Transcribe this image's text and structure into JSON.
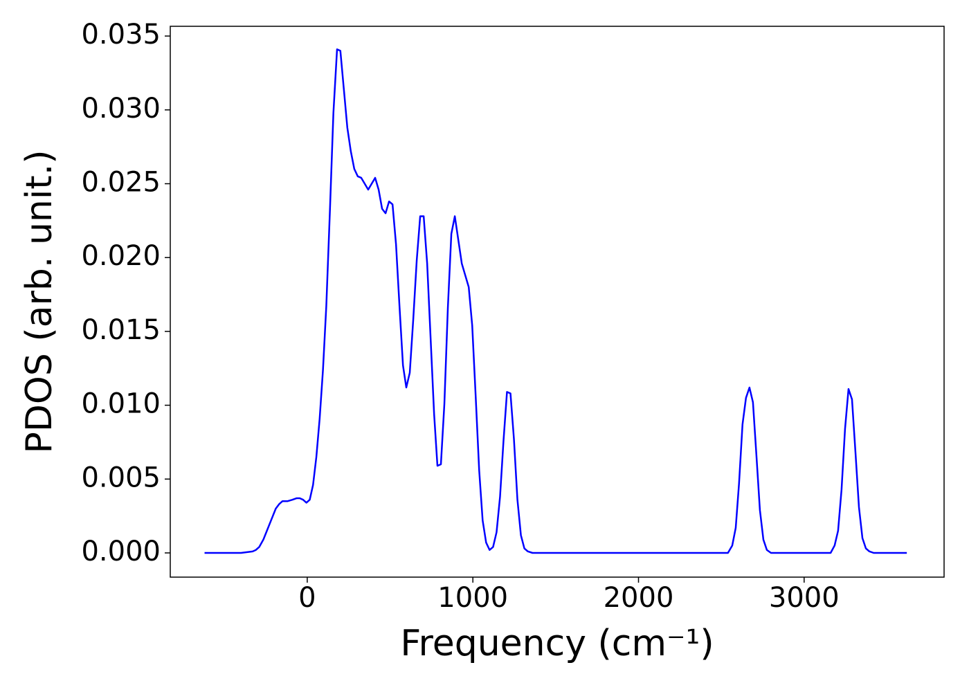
{
  "chart_data": {
    "type": "line",
    "x_label": "Frequency (cm⁻¹)",
    "y_label": "PDOS (arb. unit.)",
    "x": [
      -620,
      -400,
      -330,
      -310,
      -290,
      -265,
      -240,
      -215,
      -190,
      -170,
      -150,
      -120,
      -90,
      -65,
      -45,
      -25,
      -5,
      15,
      35,
      55,
      75,
      95,
      115,
      137,
      158,
      180,
      200,
      221,
      242,
      263,
      284,
      305,
      326,
      347,
      368,
      389,
      410,
      431,
      452,
      473,
      494,
      515,
      536,
      557,
      578,
      598,
      619,
      640,
      661,
      682,
      703,
      724,
      745,
      766,
      786,
      807,
      828,
      849,
      870,
      891,
      912,
      933,
      954,
      975,
      996,
      1017,
      1038,
      1059,
      1080,
      1101,
      1122,
      1143,
      1164,
      1185,
      1206,
      1227,
      1248,
      1269,
      1290,
      1311,
      1332,
      1360,
      2540,
      2566,
      2587,
      2607,
      2628,
      2649,
      2670,
      2691,
      2712,
      2733,
      2754,
      2775,
      2800,
      3160,
      3184,
      3205,
      3226,
      3247,
      3268,
      3289,
      3310,
      3331,
      3352,
      3373,
      3394,
      3420,
      3620
    ],
    "series": [
      {
        "color": "#0000ff",
        "values": [
          0,
          0,
          0.0001,
          0.0002,
          0.0004,
          0.0009,
          0.0016,
          0.0023,
          0.003,
          0.0033,
          0.0035,
          0.0035,
          0.0036,
          0.0037,
          0.0037,
          0.0036,
          0.0034,
          0.0036,
          0.0046,
          0.0065,
          0.0091,
          0.0124,
          0.0167,
          0.0232,
          0.0298,
          0.0341,
          0.034,
          0.0314,
          0.0288,
          0.0272,
          0.026,
          0.0255,
          0.0254,
          0.025,
          0.0246,
          0.025,
          0.0254,
          0.0246,
          0.0233,
          0.023,
          0.0238,
          0.0236,
          0.0209,
          0.0167,
          0.0127,
          0.0112,
          0.0122,
          0.0158,
          0.0198,
          0.0228,
          0.0228,
          0.0196,
          0.0145,
          0.0094,
          0.0059,
          0.006,
          0.0101,
          0.0166,
          0.0216,
          0.0228,
          0.0212,
          0.0196,
          0.0188,
          0.018,
          0.0154,
          0.0106,
          0.0056,
          0.0022,
          0.0007,
          0.0002,
          0.0004,
          0.0014,
          0.0038,
          0.0076,
          0.0109,
          0.0108,
          0.0077,
          0.0036,
          0.0012,
          0.0003,
          0.0001,
          0,
          0,
          0.0005,
          0.0017,
          0.0047,
          0.0087,
          0.0105,
          0.0112,
          0.0102,
          0.0066,
          0.0029,
          0.0009,
          0.0002,
          0,
          0,
          0.0005,
          0.0015,
          0.0043,
          0.0084,
          0.0111,
          0.0104,
          0.0068,
          0.0031,
          0.001,
          0.0003,
          0.0001,
          0,
          0
        ]
      }
    ],
    "xlim": [
      -827,
      3845
    ],
    "ylim": [
      -0.00164,
      0.03566
    ],
    "xticks": [
      0,
      1000,
      2000,
      3000
    ],
    "yticks": [
      {
        "value": 0,
        "label": "0.000"
      },
      {
        "value": 0.005,
        "label": "0.005"
      },
      {
        "value": 0.01,
        "label": "0.010"
      },
      {
        "value": 0.015,
        "label": "0.015"
      },
      {
        "value": 0.02,
        "label": "0.020"
      },
      {
        "value": 0.025,
        "label": "0.025"
      },
      {
        "value": 0.03,
        "label": "0.030"
      },
      {
        "value": 0.035,
        "label": "0.035"
      }
    ]
  }
}
